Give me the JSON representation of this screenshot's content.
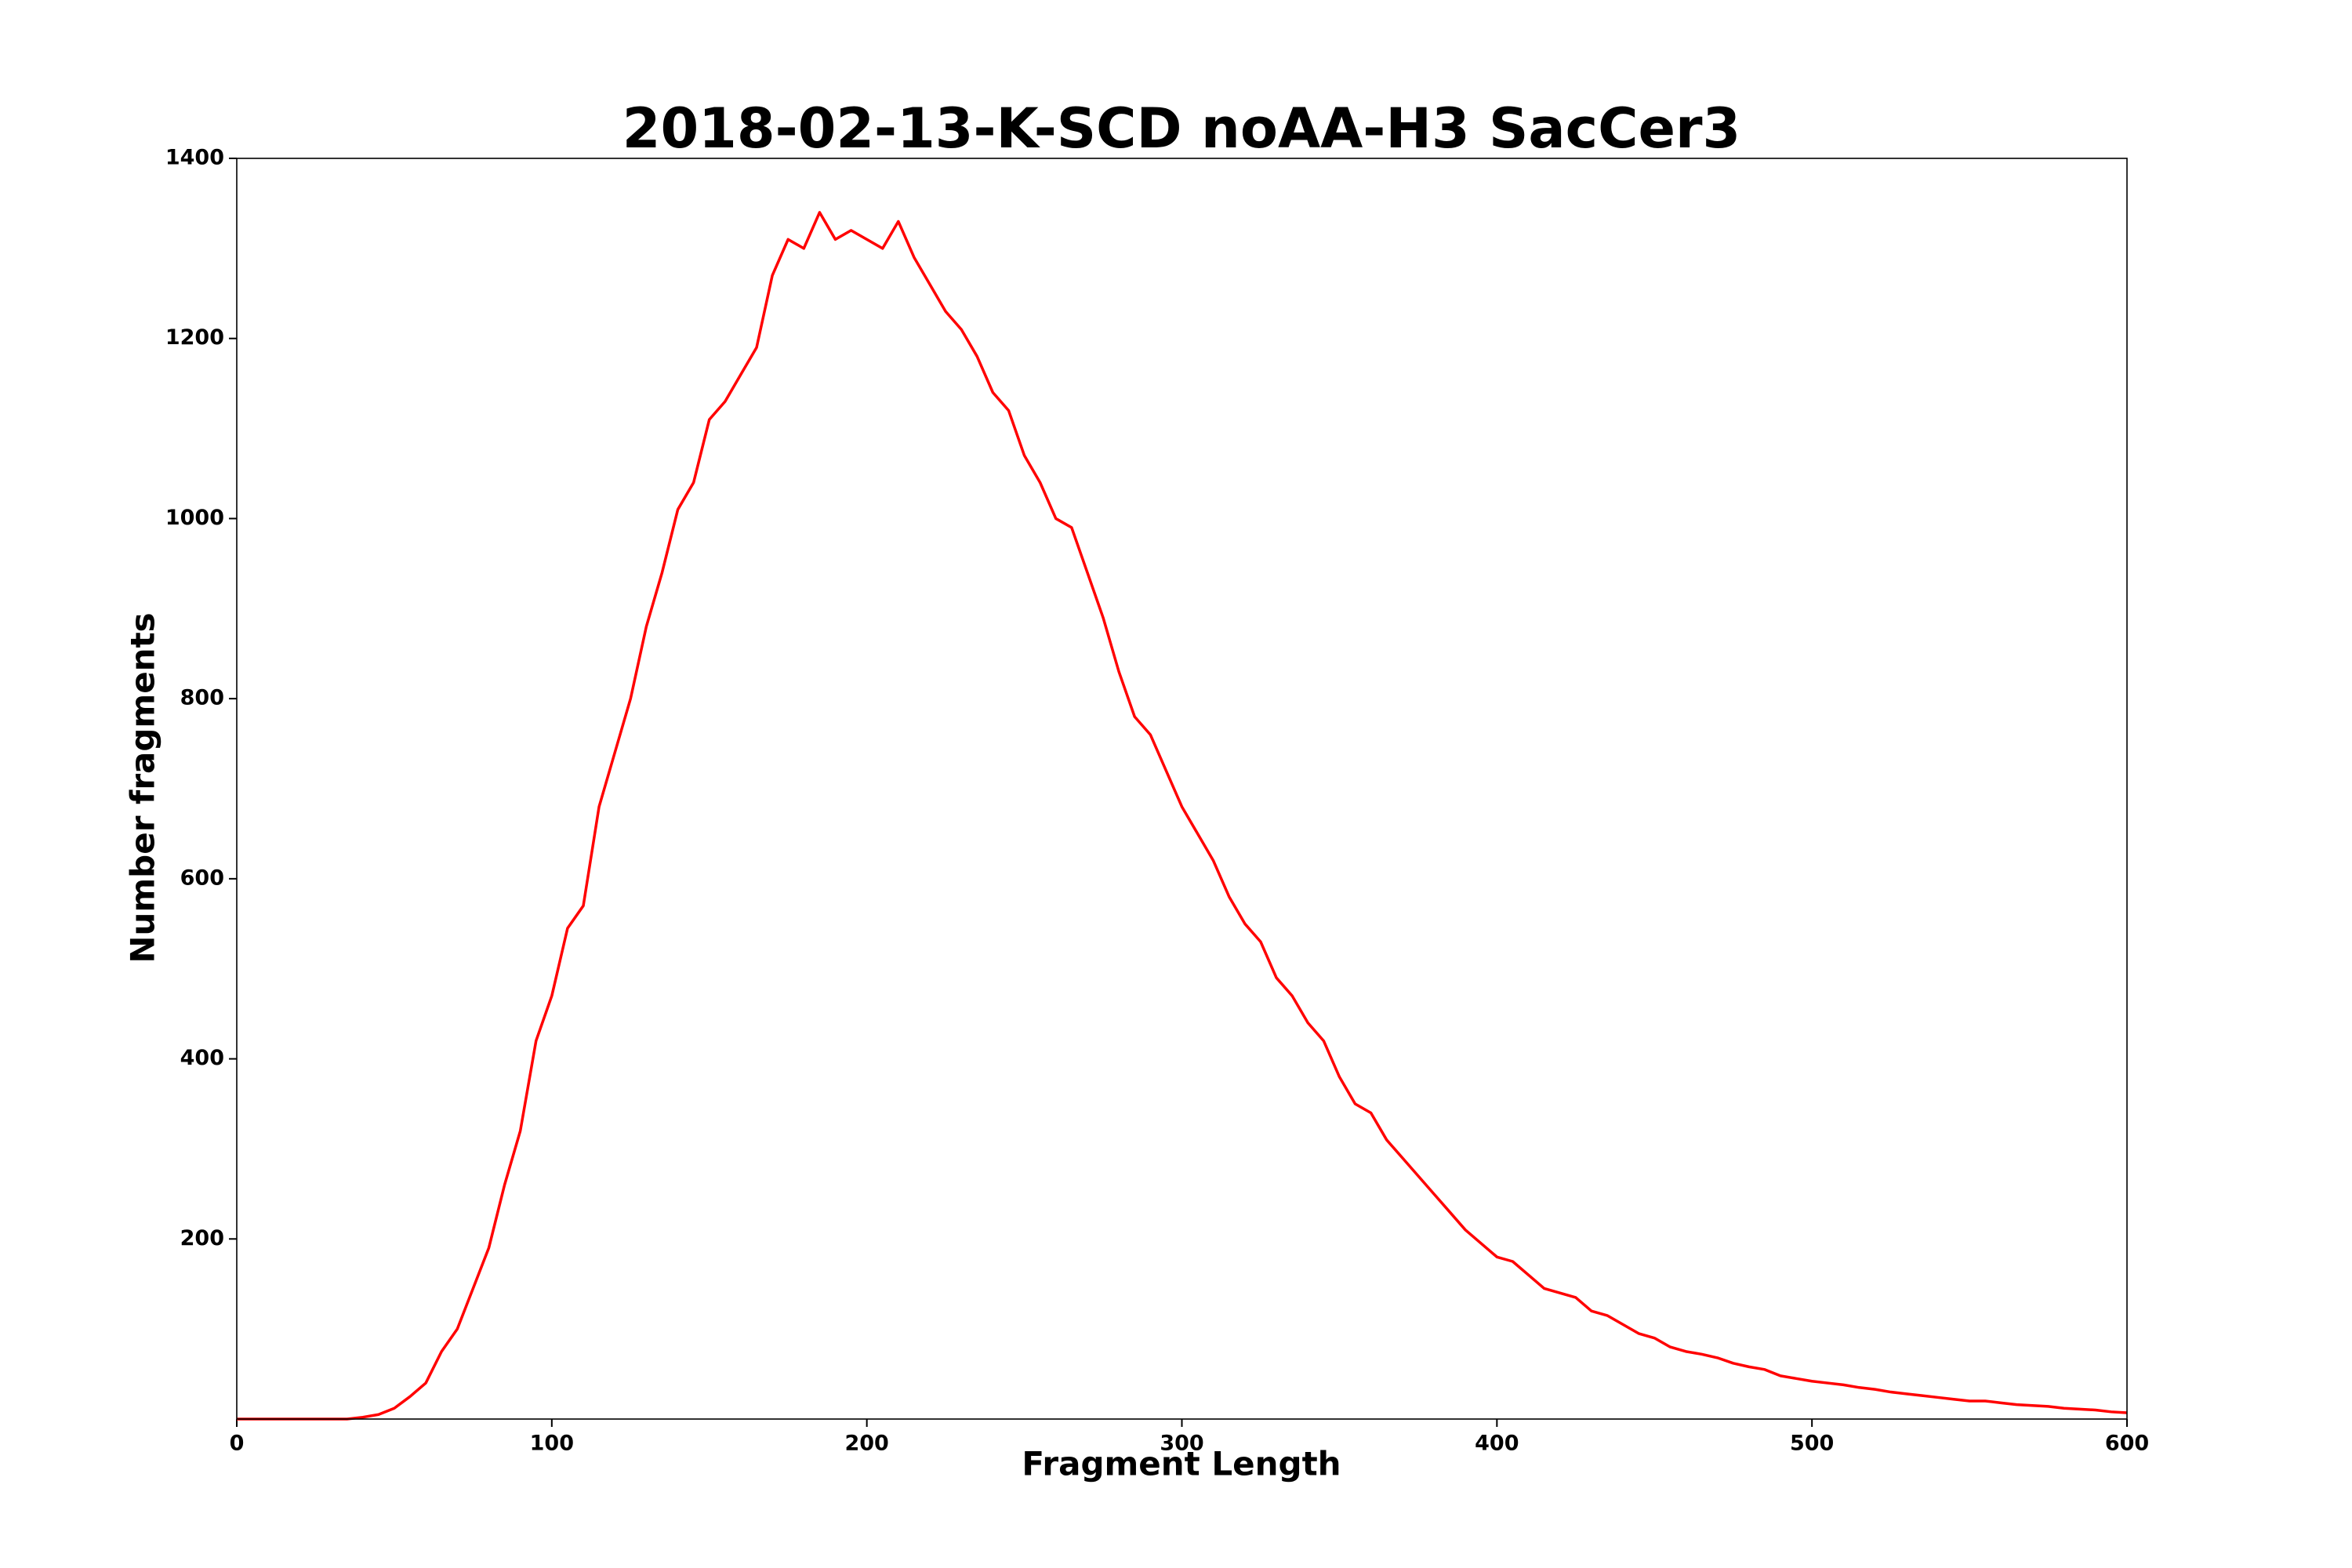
{
  "chart_data": {
    "type": "line",
    "title": "2018-02-13-K-SCD noAA-H3 SacCer3",
    "x_label": "Fragment Length",
    "y_label": "Number fragments",
    "color": "#ff0000",
    "x": [
      0,
      5,
      10,
      15,
      20,
      25,
      30,
      35,
      40,
      45,
      50,
      55,
      60,
      65,
      70,
      75,
      80,
      85,
      90,
      95,
      100,
      105,
      110,
      115,
      120,
      125,
      130,
      135,
      140,
      145,
      150,
      155,
      160,
      165,
      170,
      175,
      180,
      185,
      190,
      195,
      200,
      205,
      210,
      215,
      220,
      225,
      230,
      235,
      240,
      245,
      250,
      255,
      260,
      265,
      270,
      275,
      280,
      285,
      290,
      295,
      300,
      305,
      310,
      315,
      320,
      325,
      330,
      335,
      340,
      345,
      350,
      355,
      360,
      365,
      370,
      375,
      380,
      385,
      390,
      395,
      400,
      405,
      410,
      415,
      420,
      425,
      430,
      435,
      440,
      445,
      450,
      455,
      460,
      465,
      470,
      475,
      480,
      485,
      490,
      495,
      500,
      505,
      510,
      515,
      520,
      525,
      530,
      535,
      540,
      545,
      550,
      555,
      560,
      565,
      570,
      575,
      580,
      585,
      590,
      595,
      600
    ],
    "values": [
      0,
      0,
      0,
      0,
      0,
      0,
      0,
      0,
      2,
      5,
      12,
      25,
      40,
      75,
      100,
      145,
      190,
      260,
      320,
      420,
      470,
      545,
      570,
      680,
      740,
      800,
      880,
      940,
      1010,
      1040,
      1110,
      1130,
      1160,
      1190,
      1270,
      1310,
      1300,
      1340,
      1310,
      1320,
      1310,
      1300,
      1330,
      1290,
      1260,
      1230,
      1210,
      1180,
      1140,
      1120,
      1070,
      1040,
      1000,
      990,
      940,
      890,
      830,
      780,
      760,
      720,
      680,
      650,
      620,
      580,
      550,
      530,
      490,
      470,
      440,
      420,
      380,
      350,
      340,
      310,
      290,
      270,
      250,
      230,
      210,
      195,
      180,
      175,
      160,
      145,
      140,
      135,
      120,
      115,
      105,
      95,
      90,
      80,
      75,
      72,
      68,
      62,
      58,
      55,
      48,
      45,
      42,
      40,
      38,
      35,
      33,
      30,
      28,
      26,
      24,
      22,
      20,
      20,
      18,
      16,
      15,
      14,
      12,
      11,
      10,
      8,
      7
    ],
    "xlim": [
      0,
      600
    ],
    "xticks": [
      0,
      100,
      200,
      300,
      400,
      500,
      600
    ],
    "ylim": [
      0,
      1400
    ],
    "yticks": [
      200,
      400,
      600,
      800,
      1000,
      1200,
      1400
    ]
  }
}
